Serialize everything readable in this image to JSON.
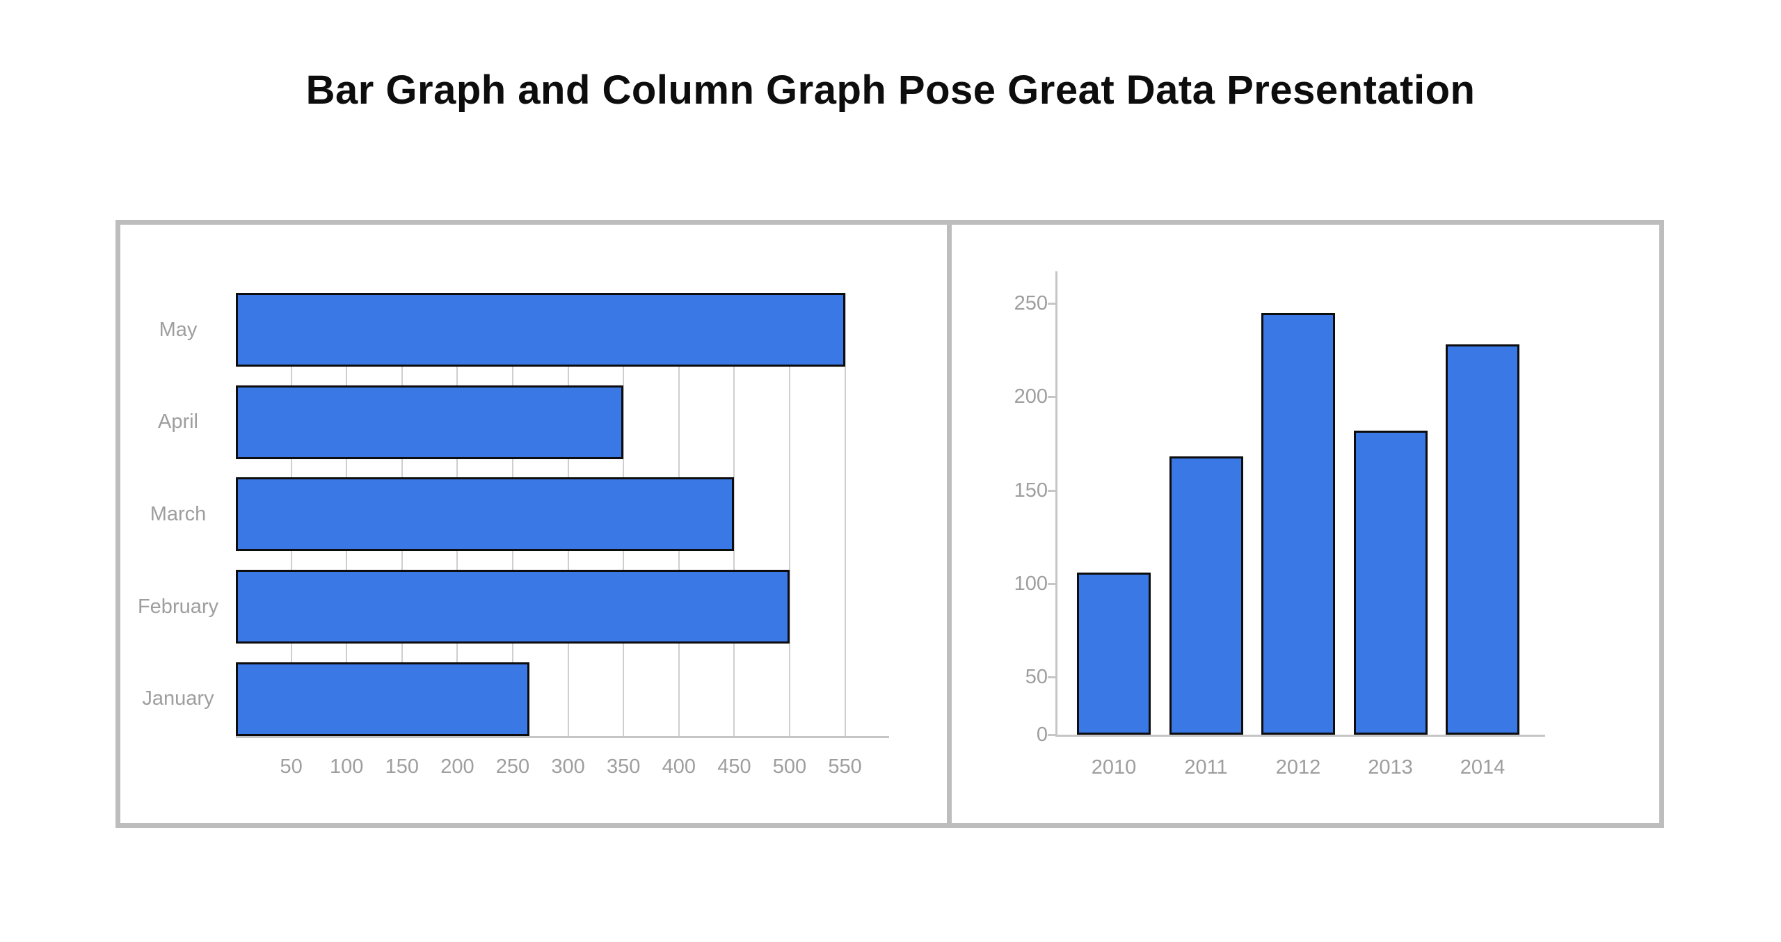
{
  "page": {
    "title": "Bar Graph and Column Graph Pose Great Data Presentation"
  },
  "colors": {
    "background": "#ffffff",
    "title_text": "#0d0d0d",
    "bar_fill": "#3a78e6",
    "bar_border": "#0d0d0d",
    "grid_line": "#cfcfcf",
    "axis_line": "#c6c6c6",
    "panel_border": "#bdbdbd",
    "label_gray": "#9e9e9e"
  },
  "chart_data": [
    {
      "id": "monthly-bar-graph",
      "type": "bar",
      "orientation": "horizontal",
      "title": "",
      "categories_top_to_bottom": [
        "May",
        "April",
        "March",
        "February",
        "January"
      ],
      "values": [
        550,
        350,
        450,
        500,
        265
      ],
      "x_ticks": [
        50,
        100,
        150,
        200,
        250,
        300,
        350,
        400,
        450,
        500,
        550
      ],
      "xlim": [
        0,
        590
      ],
      "grid": "vertical-gridlines-only",
      "legend": "none"
    },
    {
      "id": "yearly-column-graph",
      "type": "bar",
      "orientation": "vertical",
      "title": "",
      "categories": [
        "2010",
        "2011",
        "2012",
        "2013",
        "2014"
      ],
      "values": [
        106,
        168,
        245,
        182,
        228
      ],
      "y_ticks": [
        0,
        50,
        100,
        150,
        200,
        250
      ],
      "ylim": [
        0,
        250
      ],
      "grid": "none",
      "legend": "none",
      "note": "0-to-50 axis segment drawn compressed (truncated baseline) as in source image"
    }
  ]
}
